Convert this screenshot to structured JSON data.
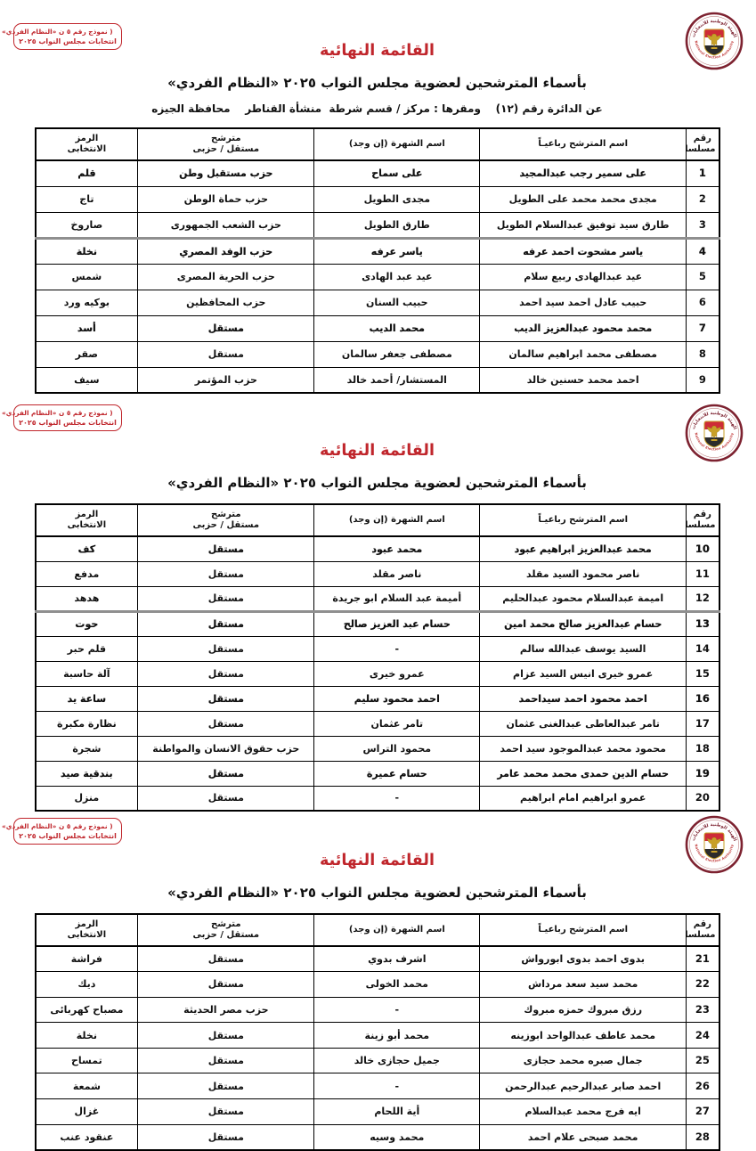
{
  "page": {
    "form_box": {
      "line1": "( نموذج رقم ٥ ن «النظام الفردي» )",
      "line2": "انتخابات مجلس النواب ٢٠٢٥"
    },
    "logo": {
      "top_text": "الهيئة الوطنية للانتخابات",
      "bottom_text": "National Election Authority"
    },
    "title": "القائمة النهائية",
    "subtitle": "بأسماء المترشحين لعضوية مجلس النواب ٢٠٢٥ «النظام الفردي»",
    "district_line": "عن الدائرة رقم (١٢)    ومقرها : مركز / قسم شرطة  منشأة القناطر    محافظة الجيزه",
    "colors": {
      "accent_red": "#c0262c",
      "maroon_ring": "#7d2230",
      "eagle_gold": "#c8a028"
    }
  },
  "table_headers": {
    "serial": "رقم\nمسلسل",
    "name": "اسم المترشح رباعيـاً",
    "alias": "اسم الشهرة (إن وجد)",
    "party": "مترشح\nمستقل / حزبى",
    "symbol": "الرمز\nالانتخابى"
  },
  "sections": [
    {
      "rows": [
        {
          "serial": "1",
          "name": "على سمير رجب عبدالمجيد",
          "alias": "على سماح",
          "party": "حزب مستقبل وطن",
          "symbol": "قلم",
          "bold": true
        },
        {
          "serial": "2",
          "name": "مجدى محمد محمد على الطويل",
          "alias": "مجدى الطويل",
          "party": "حزب حماة الوطن",
          "symbol": "تاج"
        },
        {
          "serial": "3",
          "name": "طارق سيد توفيق عبدالسلام الطويل",
          "alias": "طارق الطويل",
          "party": "حزب الشعب الجمهورى",
          "symbol": "صاروخ"
        },
        {
          "serial": "4",
          "name": "ياسر مشحوت احمد عرفه",
          "alias": "ياسر عرفه",
          "party": "حزب الوفد المصري",
          "symbol": "نخلة",
          "bold": true,
          "divider": true
        },
        {
          "serial": "5",
          "name": "عيد عبدالهادى ربيع سلام",
          "alias": "عيد عبد الهادى",
          "party": "حزب الحرية المصرى",
          "symbol": "شمس"
        },
        {
          "serial": "6",
          "name": "حبيب عادل احمد سيد احمد",
          "alias": "حبيب السنان",
          "party": "حزب المحافظين",
          "symbol": "بوكيه ورد"
        },
        {
          "serial": "7",
          "name": "محمد محمود عبدالعزيز الديب",
          "alias": "محمد الديب",
          "party": "مستقل",
          "symbol": "أسد",
          "bold": true
        },
        {
          "serial": "8",
          "name": "مصطفى محمد ابراهيم سالمان",
          "alias": "مصطفى جعفر سالمان",
          "party": "مستقل",
          "symbol": "صقر"
        },
        {
          "serial": "9",
          "name": "احمد محمد حسنين خالد",
          "alias": "المستشار/ أحمد خالد",
          "party": "حزب المؤتمر",
          "symbol": "سيف"
        }
      ]
    },
    {
      "rows": [
        {
          "serial": "10",
          "name": "محمد عبدالعزيز ابراهيم عبود",
          "alias": "محمد عبود",
          "party": "مستقل",
          "symbol": "كف",
          "bold": true
        },
        {
          "serial": "11",
          "name": "ناصر محمود السيد مقلد",
          "alias": "ناصر مقلد",
          "party": "مستقل",
          "symbol": "مدفع"
        },
        {
          "serial": "12",
          "name": "اميمة عبدالسلام محمود عبدالحليم",
          "alias": "أميمة عبد السلام ابو جريدة",
          "party": "مستقل",
          "symbol": "هدهد"
        },
        {
          "serial": "13",
          "name": "حسام عبدالعزيز صالح محمد امين",
          "alias": "حسام عبد العزيز صالح",
          "party": "مستقل",
          "symbol": "حوت",
          "bold": true,
          "divider": true
        },
        {
          "serial": "14",
          "name": "السيد يوسف عبدالله سالم",
          "alias": "-",
          "party": "مستقل",
          "symbol": "قلم حبر"
        },
        {
          "serial": "15",
          "name": "عمرو خيرى انيس السيد عزام",
          "alias": "عمرو خيرى",
          "party": "مستقل",
          "symbol": "آلة حاسبة"
        },
        {
          "serial": "16",
          "name": "احمد محمود احمد سيداحمد",
          "alias": "احمد محمود سليم",
          "party": "مستقل",
          "symbol": "ساعة يد",
          "bold": true
        },
        {
          "serial": "17",
          "name": "تامر عبدالعاطى عبدالغنى عثمان",
          "alias": "تامر عثمان",
          "party": "مستقل",
          "symbol": "نظارة مكبرة"
        },
        {
          "serial": "18",
          "name": "محمود محمد عبدالموجود سيد احمد",
          "alias": "محمود التراس",
          "party": "حزب حقوق الانسان والمواطنة",
          "symbol": "شجرة"
        },
        {
          "serial": "19",
          "name": "حسام الدين حمدى محمد محمد عامر",
          "alias": "حسام عميرة",
          "party": "مستقل",
          "symbol": "بندقية صيد",
          "bold": true
        },
        {
          "serial": "20",
          "name": "عمرو ابراهيم امام ابراهيم",
          "alias": "-",
          "party": "مستقل",
          "symbol": "منزل"
        }
      ]
    },
    {
      "rows": [
        {
          "serial": "21",
          "name": "بدوى احمد بدوى ابورواش",
          "alias": "اشرف بدوي",
          "party": "مستقل",
          "symbol": "فراشة"
        },
        {
          "serial": "22",
          "name": "محمد سيد سعد مرداش",
          "alias": "محمد الخولى",
          "party": "مستقل",
          "symbol": "ديك"
        },
        {
          "serial": "23",
          "name": "رزق مبروك حمزه مبروك",
          "alias": "-",
          "party": "حزب مصر الحديثة",
          "symbol": "مصباح كهربائى"
        },
        {
          "serial": "24",
          "name": "محمد عاطف عبدالواحد ابوزينه",
          "alias": "محمد أبو زينة",
          "party": "مستقل",
          "symbol": "نخلة"
        },
        {
          "serial": "25",
          "name": "جمال صبره محمد حجازى",
          "alias": "جميل حجازى خالد",
          "party": "مستقل",
          "symbol": "تمساح"
        },
        {
          "serial": "26",
          "name": "احمد صابر عبدالرحيم عبدالرحمن",
          "alias": "-",
          "party": "مستقل",
          "symbol": "شمعة"
        },
        {
          "serial": "27",
          "name": "ايه فرج محمد عبدالسلام",
          "alias": "أية اللحام",
          "party": "مستقل",
          "symbol": "غزال"
        },
        {
          "serial": "28",
          "name": "محمد صبحى علام احمد",
          "alias": "محمد وسيه",
          "party": "مستقل",
          "symbol": "عنقود عنب"
        }
      ]
    }
  ]
}
